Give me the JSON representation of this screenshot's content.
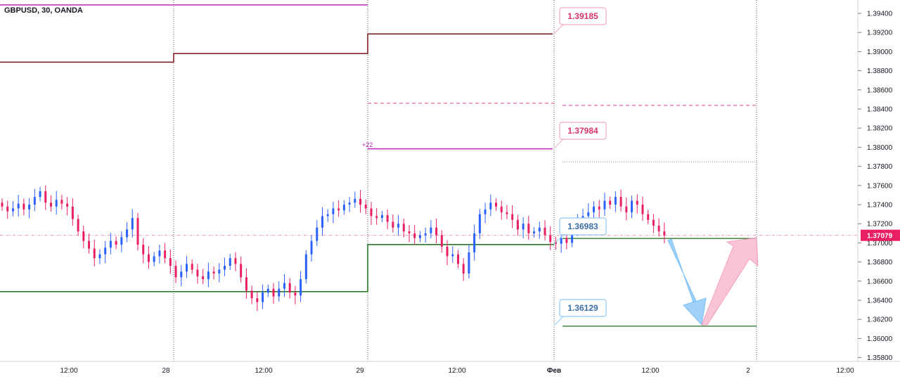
{
  "chart_title": "GBPUSD, 30, OANDA",
  "colors": {
    "up": "#2962ff",
    "down": "#e91e63",
    "maroon": "#7b1419",
    "magenta": "#c026b5",
    "pink_dash": "#e0409a",
    "green": "#1b6e1b",
    "tag_pink_border": "#f5a9bf",
    "tag_pink_text": "#d6336c",
    "tag_blue_border": "#90caf9",
    "tag_blue_text": "#3b6ea5",
    "current_price_bg": "#e91e63",
    "arrow_blue": "#90caf9",
    "arrow_pink": "#f8bbd0"
  },
  "price_axis": {
    "ticks": [
      "1.39400",
      "1.39200",
      "1.39000",
      "1.38800",
      "1.38600",
      "1.38400",
      "1.38200",
      "1.38000",
      "1.37800",
      "1.37600",
      "1.37400",
      "1.37200",
      "1.37000",
      "1.36800",
      "1.36600",
      "1.36400",
      "1.36200",
      "1.36000",
      "1.35800"
    ],
    "current_price": "1.37079"
  },
  "time_axis": {
    "labels": [
      "12:00",
      "28",
      "12:00",
      "29",
      "12:00",
      "Фев",
      "12:00",
      "2",
      "12:00"
    ]
  },
  "tags": {
    "t1": "1.39185",
    "t2": "1.37984",
    "t3": "1.36983",
    "t4": "1.36129",
    "plus_label": "+22"
  },
  "chart_data": {
    "type": "candlestick",
    "symbol": "GBPUSD",
    "timeframe": "30",
    "source": "OANDA",
    "ylim": [
      1.3577,
      1.3952
    ],
    "levels": {
      "maroon_pivot": [
        1.3889,
        1.3898,
        1.39185
      ],
      "green_pivot": [
        1.3649,
        1.3649,
        1.36983
      ],
      "magenta_line": 1.37984,
      "pink_dashed_upper": 1.3846,
      "top_pink_line": 1.3948,
      "support_level": 1.36129,
      "resistance_level": 1.37046
    },
    "closes": [
      1.3738,
      1.3733,
      1.3736,
      1.3741,
      1.3735,
      1.374,
      1.3748,
      1.3754,
      1.3742,
      1.3738,
      1.3745,
      1.3741,
      1.3738,
      1.3725,
      1.3712,
      1.3702,
      1.3694,
      1.3684,
      1.3688,
      1.3695,
      1.3702,
      1.3698,
      1.3706,
      1.3714,
      1.3726,
      1.3698,
      1.3688,
      1.368,
      1.3686,
      1.3692,
      1.3684,
      1.3676,
      1.3664,
      1.367,
      1.3678,
      1.3672,
      1.3665,
      1.3662,
      1.367,
      1.3668,
      1.3672,
      1.3676,
      1.3684,
      1.3678,
      1.3664,
      1.365,
      1.3642,
      1.3638,
      1.3648,
      1.3652,
      1.3644,
      1.3652,
      1.3658,
      1.3648,
      1.3645,
      1.3662,
      1.3688,
      1.3702,
      1.3716,
      1.3728,
      1.373,
      1.3736,
      1.3734,
      1.374,
      1.3742,
      1.3746,
      1.374,
      1.3736,
      1.3728,
      1.3726,
      1.3729,
      1.3722,
      1.3716,
      1.372,
      1.3712,
      1.371,
      1.3705,
      1.3708,
      1.371,
      1.3716,
      1.3708,
      1.3696,
      1.3686,
      1.3688,
      1.3678,
      1.3668,
      1.369,
      1.371,
      1.373,
      1.3735,
      1.3742,
      1.3738,
      1.3732,
      1.373,
      1.3724,
      1.3714,
      1.372,
      1.371,
      1.3712,
      1.3716,
      1.3708,
      1.3701,
      1.3699,
      1.3705,
      1.37,
      1.3715,
      1.3724,
      1.3728,
      1.3732,
      1.3738,
      1.3735,
      1.3744,
      1.374,
      1.3748,
      1.3738,
      1.3732,
      1.3744,
      1.374,
      1.373,
      1.3724,
      1.3718,
      1.3712,
      1.3708
    ]
  }
}
